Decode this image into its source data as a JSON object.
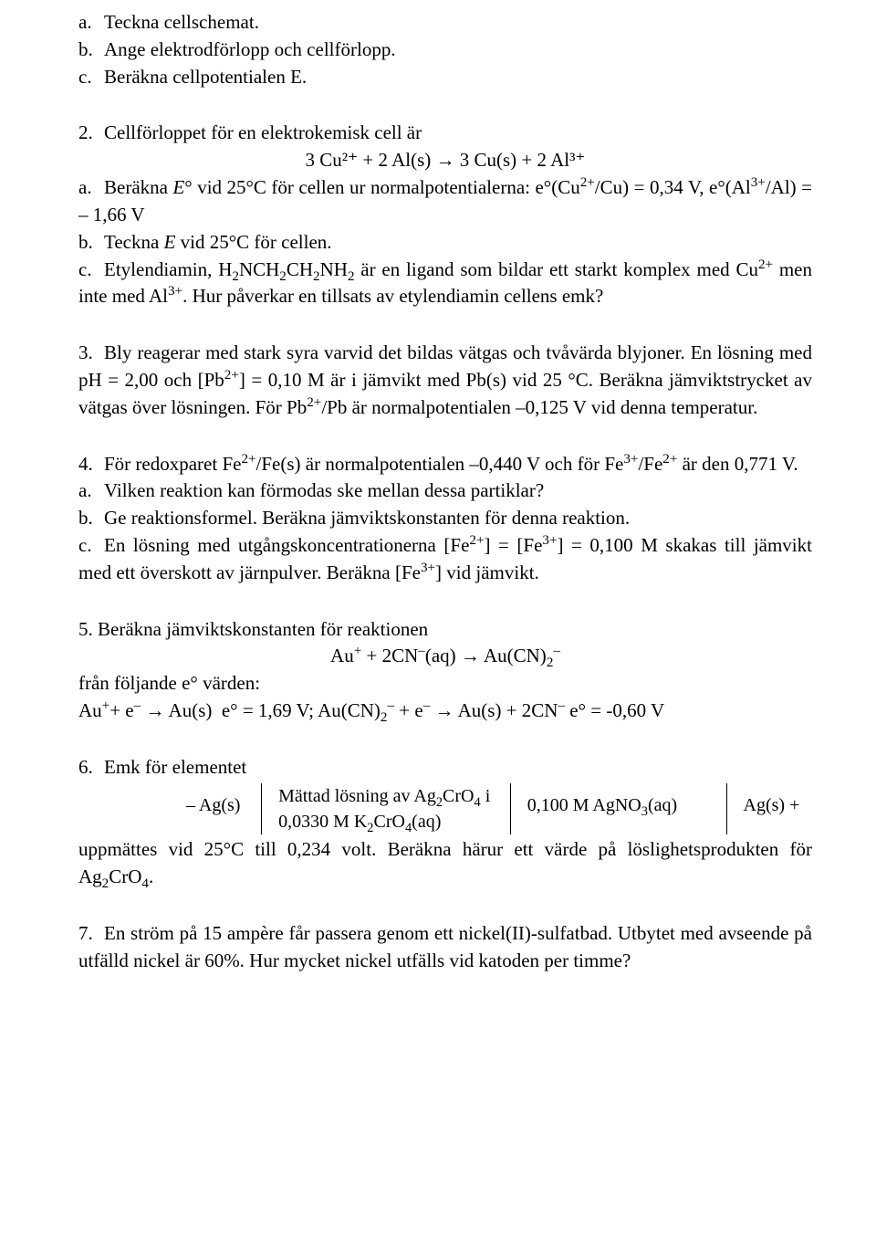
{
  "q1": {
    "a": "Teckna cellschemat.",
    "b": "Ange elektrodförlopp och cellförlopp.",
    "c": "Beräkna cellpotentialen E."
  },
  "q2": {
    "lead_num": "2.",
    "lead": "Cellförloppet för en elektrokemisk cell är",
    "eq": "3 Cu²⁺ + 2 Al(s) → 3 Cu(s) + 2 Al³⁺",
    "a": "Beräkna E° vid 25°C för cellen ur normalpotentialerna: e°(Cu²⁺/Cu) = 0,34 V, e°(Al³⁺/Al) = – 1,66 V",
    "b": "Teckna E vid 25°C för cellen.",
    "c": "Etylendiamin, H₂NCH₂CH₂NH₂ är en ligand som bildar ett starkt komplex med Cu²⁺ men inte med Al³⁺. Hur påverkar en tillsats av etylendiamin cellens emk?"
  },
  "q3": {
    "num": "3.",
    "text": "Bly reagerar med stark syra varvid det bildas vätgas och tvåvärda blyjoner. En lösning med pH = 2,00 och [Pb²⁺] = 0,10 M är i jämvikt med Pb(s) vid 25 °C. Beräkna jämviktstrycket av vätgas över lösningen. För Pb²⁺/Pb är normalpotentialen –0,125 V vid denna temperatur."
  },
  "q4": {
    "num": "4.",
    "lead": "För redoxparet Fe²⁺/Fe(s) är normalpotentialen –0,440 V och för Fe³⁺/Fe²⁺ är den 0,771 V.",
    "a": "Vilken reaktion kan förmodas ske mellan dessa partiklar?",
    "b": "Ge reaktionsformel. Beräkna jämviktskonstanten för denna reaktion.",
    "c": "En lösning med utgångskoncentrationerna [Fe²⁺] = [Fe³⁺] = 0,100 M skakas till jämvikt med ett överskott av järnpulver. Beräkna [Fe³⁺] vid jämvikt."
  },
  "q5": {
    "lead": "5. Beräkna jämviktskonstanten för reaktionen",
    "eq": "Au⁺ + 2CN⁻(aq) → Au(CN)₂⁻",
    "mid": "från följande e° värden:",
    "line": "Au⁺+ e⁻ → Au(s)  e° = 1,69 V; Au(CN)₂⁻ + e⁻ → Au(s) + 2CN⁻ e° = -0,60 V"
  },
  "q6": {
    "num": "6.",
    "lead": "Emk för elementet",
    "cell": {
      "c1": "– Ag(s)",
      "c2a": "Mättad lösning av Ag₂CrO₄ i",
      "c2b": "0,0330 M K₂CrO₄(aq)",
      "c3": "0,100 M AgNO₃(aq)",
      "c4": "Ag(s) +"
    },
    "tail": "uppmättes vid 25°C till 0,234 volt. Beräkna härur ett värde på löslighetsprodukten för Ag₂CrO₄."
  },
  "q7": {
    "num": "7.",
    "text": "En ström på 15 ampère får passera genom ett nickel(II)-sulfatbad. Utbytet med avseende på utfälld nickel är 60%. Hur mycket nickel utfälls vid katoden per timme?"
  },
  "labels": {
    "a": "a.",
    "b": "b.",
    "c": "c."
  }
}
